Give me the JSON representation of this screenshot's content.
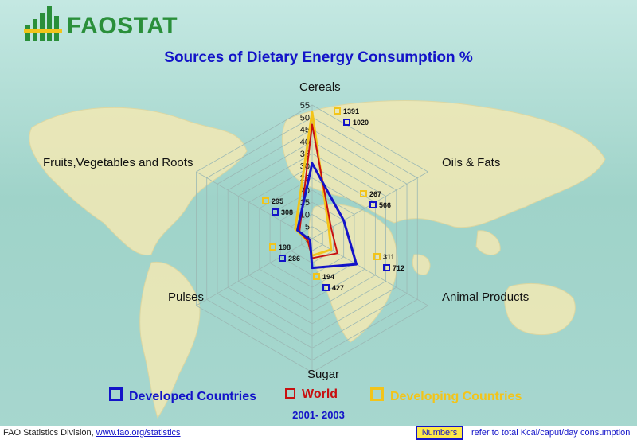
{
  "header": {
    "logo_text": "FAOSTAT"
  },
  "footer": {
    "source_text": "FAO Statistics Division,",
    "source_link": "www.fao.org/statistics",
    "numbers_label": "Numbers",
    "note": "refer to total Kcal/caput/day consumption"
  },
  "colors": {
    "developed": "#1313c8",
    "world": "#c81010",
    "developing": "#f2c41a"
  },
  "chart_data": {
    "type": "radar",
    "title": "Sources of Dietary Energy Consumption  %",
    "subtitle": "2001- 2003",
    "axes": [
      "Cereals",
      "Oils & Fats",
      "Animal Products",
      "Sugar",
      "Pulses",
      "Fruits,Vegetables and Roots"
    ],
    "radial_range": [
      0,
      55
    ],
    "radial_ticks": [
      "0",
      "5",
      "10",
      "15",
      "20",
      "25",
      "30",
      "35",
      "40",
      "45",
      "50",
      "55"
    ],
    "series": [
      {
        "name": "Developed Countries",
        "values": [
          31,
          15,
          21,
          12,
          1,
          7
        ],
        "kcal": [
          "1020",
          "566",
          "712",
          "427",
          "286",
          "308"
        ]
      },
      {
        "name": "World",
        "values": [
          47,
          9,
          12,
          8,
          2,
          6
        ]
      },
      {
        "name": "Developing Countries",
        "values": [
          52,
          8,
          9,
          7,
          2,
          8
        ],
        "kcal": [
          "1391",
          "267",
          "311",
          "194",
          "198",
          "295"
        ]
      }
    ],
    "legend_position": "bottom",
    "grid": true
  }
}
